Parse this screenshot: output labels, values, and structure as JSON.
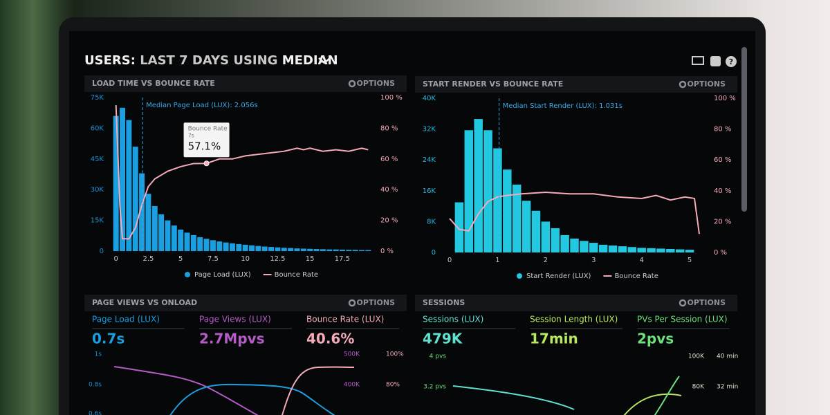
{
  "header": {
    "title": {
      "prefix": "USERS:",
      "range": "LAST 7 DAYS",
      "using": "USING",
      "method": "MEDIAN"
    }
  },
  "chart_data": [
    {
      "type": "histogram",
      "title": "LOAD TIME VS BOUNCE RATE",
      "options_label": "OPTIONS",
      "grid": false,
      "bins": [
        -0.25,
        0.25,
        0.75,
        1.25,
        1.75,
        2.25,
        2.75,
        3.25,
        3.75,
        4.25,
        4.75,
        5.25,
        5.75,
        6.25,
        6.75,
        7.25,
        7.75,
        8.25,
        8.75,
        9.25,
        9.75,
        10.25,
        10.75,
        11.25,
        11.75,
        12.25,
        12.75,
        13.25,
        13.75,
        14.25,
        14.75,
        15.25,
        15.75,
        16.25,
        16.75,
        17.25,
        17.75,
        18.25,
        18.75,
        19.25,
        19.75
      ],
      "series": [
        {
          "name": "Page Load (LUX)",
          "color": "#1a9fe0",
          "values": [
            66000,
            70000,
            64000,
            51000,
            38000,
            28000,
            22000,
            18000,
            15000,
            12500,
            10500,
            9000,
            7800,
            6800,
            6000,
            5300,
            4700,
            4200,
            3800,
            3400,
            3100,
            2800,
            2500,
            2200,
            2000,
            1800,
            1600,
            1500,
            1300,
            1200,
            1100,
            1000,
            900,
            800,
            800,
            700,
            600,
            600,
            500,
            500
          ]
        },
        {
          "name": "Bounce Rate",
          "color": "#f4aab9",
          "type": "line",
          "axis": "y2",
          "x": [
            0,
            0.3,
            0.5,
            1,
            1.5,
            2,
            2.5,
            3,
            4,
            5,
            6,
            7,
            8,
            9,
            10,
            11,
            12,
            13,
            14,
            14.5,
            15,
            16,
            17,
            18,
            19,
            19.5
          ],
          "values": [
            95,
            30,
            8,
            8,
            15,
            30,
            42,
            47,
            52,
            55,
            57,
            57.1,
            60,
            60,
            62,
            63,
            64,
            65,
            67,
            66,
            67,
            65,
            66,
            65,
            67,
            66
          ]
        }
      ],
      "xlim": [
        -0.25,
        19.75
      ],
      "xticks": [
        0,
        2.5,
        5,
        7.5,
        10,
        12.5,
        15,
        17.5
      ],
      "ylim": [
        0,
        75000
      ],
      "yticks": [
        0,
        {
          "value": 15000,
          "label": "15K"
        },
        {
          "value": 30000,
          "label": "30K"
        },
        {
          "value": 45000,
          "label": "45K"
        },
        {
          "value": 60000,
          "label": "60K"
        },
        {
          "value": 75000,
          "label": "75K"
        }
      ],
      "y2lim": [
        0,
        100
      ],
      "y2ticks": [
        {
          "value": 0,
          "label": "0 %"
        },
        {
          "value": 20,
          "label": "20 %"
        },
        {
          "value": 40,
          "label": "40 %"
        },
        {
          "value": 60,
          "label": "60 %"
        },
        {
          "value": 80,
          "label": "80 %"
        },
        {
          "value": 100,
          "label": "100 %"
        }
      ],
      "annotation": {
        "text": "Median Page Load (LUX): 2.056s",
        "x": 2.056
      },
      "tooltip": {
        "title": "Bounce Rate",
        "x_label": "7s",
        "value_label": "57.1%",
        "x": 7,
        "value": 57.1
      }
    },
    {
      "type": "histogram",
      "title": "START RENDER VS BOUNCE RATE",
      "options_label": "OPTIONS",
      "grid": false,
      "bins": [
        0.1,
        0.3,
        0.5,
        0.7,
        0.9,
        1.1,
        1.3,
        1.5,
        1.7,
        1.9,
        2.1,
        2.3,
        2.5,
        2.7,
        2.9,
        3.1,
        3.3,
        3.5,
        3.7,
        3.9,
        4.1,
        4.3,
        4.5,
        4.7,
        4.9,
        5.1
      ],
      "series": [
        {
          "name": "Start Render (LUX)",
          "color": "#22c8e0",
          "values": [
            13000,
            31700,
            34600,
            31700,
            27000,
            21500,
            17600,
            13400,
            10800,
            8000,
            6300,
            4500,
            3600,
            3000,
            2500,
            2000,
            1800,
            1600,
            1400,
            1200,
            1100,
            1000,
            900,
            800,
            700
          ]
        },
        {
          "name": "Bounce Rate",
          "color": "#f4aab9",
          "type": "line",
          "axis": "y2",
          "x": [
            0,
            0.2,
            0.4,
            0.6,
            0.8,
            1,
            1.2,
            1.5,
            2,
            2.5,
            3,
            3.5,
            4,
            4.3,
            4.6,
            4.9,
            5.1,
            5.2
          ],
          "values": [
            22,
            15,
            14,
            25,
            33,
            36,
            37,
            38,
            39,
            38,
            38,
            36,
            35,
            37,
            34,
            36,
            35,
            12
          ]
        }
      ],
      "xlim": [
        0,
        5.2
      ],
      "xticks": [
        0,
        1,
        2,
        3,
        4,
        5
      ],
      "ylim": [
        0,
        40000
      ],
      "yticks": [
        0,
        {
          "value": 8000,
          "label": "8K"
        },
        {
          "value": 16000,
          "label": "16K"
        },
        {
          "value": 24000,
          "label": "24K"
        },
        {
          "value": 32000,
          "label": "32K"
        },
        {
          "value": 40000,
          "label": "40K"
        }
      ],
      "y2lim": [
        0,
        100
      ],
      "y2ticks": [
        {
          "value": 0,
          "label": "0 %"
        },
        {
          "value": 20,
          "label": "20 %"
        },
        {
          "value": 40,
          "label": "40 %"
        },
        {
          "value": 60,
          "label": "60 %"
        },
        {
          "value": 80,
          "label": "80 %"
        },
        {
          "value": 100,
          "label": "100 %"
        }
      ],
      "annotation": {
        "text": "Median Start Render (LUX): 1.031s",
        "x": 1.031
      }
    }
  ],
  "kpi_panels": [
    {
      "title": "PAGE VIEWS VS ONLOAD",
      "options_label": "OPTIONS",
      "kpis": [
        {
          "label": "Page Load (LUX)",
          "value": "0.7s",
          "color": "#1a9fe0"
        },
        {
          "label": "Page Views (LUX)",
          "value": "2.7Mpvs",
          "color": "#b55bc8"
        },
        {
          "label": "Bounce Rate (LUX)",
          "value": "40.6%",
          "color": "#f4aab9"
        }
      ],
      "left_axis_labels": [
        "1s",
        "0.8s",
        "0.6s"
      ],
      "right_axis_labels": [
        [
          "500K",
          "100%"
        ],
        [
          "400K",
          "80%"
        ]
      ]
    },
    {
      "title": "SESSIONS",
      "options_label": "OPTIONS",
      "kpis": [
        {
          "label": "Sessions (LUX)",
          "value": "479K",
          "color": "#5fe0d0"
        },
        {
          "label": "Session Length (LUX)",
          "value": "17min",
          "color": "#b8e860"
        },
        {
          "label": "PVs Per Session (LUX)",
          "value": "2pvs",
          "color": "#6ee07a"
        }
      ],
      "left_axis_labels": [
        "4 pvs",
        "3.2 pvs"
      ],
      "right_axis_labels": [
        [
          "100K",
          "40 min"
        ],
        [
          "80K",
          "32 min"
        ]
      ]
    }
  ]
}
